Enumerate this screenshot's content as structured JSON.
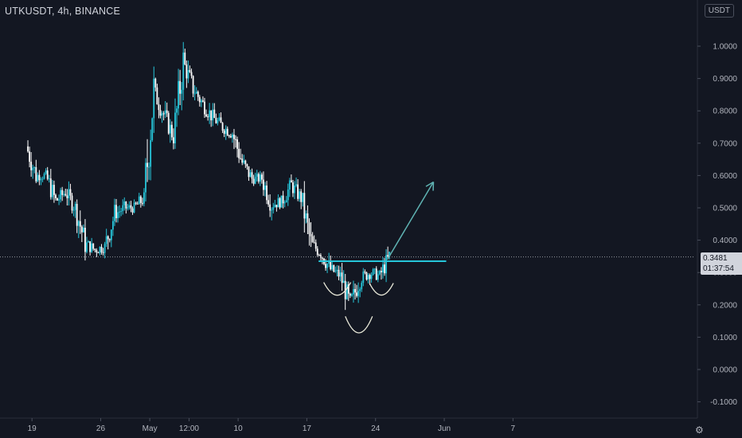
{
  "header": {
    "symbol_title": "UTKUSDT, 4h, BINANCE",
    "currency_button": "USDT"
  },
  "price_tag": {
    "price": "0.3481",
    "countdown": "01:37:54",
    "color": "#d1d4dc"
  },
  "icons": {
    "settings": "gear-icon"
  },
  "colors": {
    "background": "#131722",
    "up_candle": "#26c6da",
    "down_candle": "#ffffff",
    "annotation": "#5fb3b3",
    "arc": "#e8e8d8",
    "axis_text": "#b2b5be",
    "price_line": "#9598a1"
  },
  "chart_data": {
    "type": "line",
    "title": "UTKUSDT, 4h, BINANCE",
    "xlabel": "",
    "ylabel": "",
    "ylim": [
      -0.14,
      1.07
    ],
    "y_ticks": [
      "1.0000",
      "0.9000",
      "0.8000",
      "0.7000",
      "0.6000",
      "0.5000",
      "0.4000",
      "0.3000",
      "0.2000",
      "0.1000",
      "0.0000",
      "-0.1000"
    ],
    "y_tick_values": [
      1.0,
      0.9,
      0.8,
      0.7,
      0.6,
      0.5,
      0.4,
      0.3,
      0.2,
      0.1,
      0.0,
      -0.1
    ],
    "x_ticks": [
      "19",
      "26",
      "May",
      "12:00",
      "10",
      "17",
      "24",
      "Jun",
      "7"
    ],
    "x_tick_values": [
      0.5,
      7.5,
      12.5,
      16.5,
      21.5,
      28.5,
      35.5,
      42.5,
      49.5
    ],
    "x_range": [
      -0.7,
      51.5
    ],
    "current_price": 0.3481,
    "grid": false,
    "legend": "none",
    "series": [
      {
        "values_by_day": [
          [
            0,
            0.69
          ],
          [
            1,
            0.6
          ],
          [
            2,
            0.6
          ],
          [
            3,
            0.52
          ],
          [
            4,
            0.55
          ],
          [
            5,
            0.5
          ],
          [
            6,
            0.39
          ],
          [
            7,
            0.37
          ],
          [
            8,
            0.38
          ],
          [
            9,
            0.48
          ],
          [
            10,
            0.5
          ],
          [
            11,
            0.5
          ],
          [
            12,
            0.53
          ],
          [
            13,
            0.86
          ],
          [
            14,
            0.79
          ],
          [
            15,
            0.72
          ],
          [
            16,
            0.95
          ],
          [
            17,
            0.87
          ],
          [
            18,
            0.82
          ],
          [
            19,
            0.78
          ],
          [
            20,
            0.75
          ],
          [
            21,
            0.73
          ],
          [
            22,
            0.64
          ],
          [
            23,
            0.59
          ],
          [
            24,
            0.59
          ],
          [
            25,
            0.51
          ],
          [
            26,
            0.52
          ],
          [
            27,
            0.57
          ],
          [
            28,
            0.53
          ],
          [
            29,
            0.39
          ],
          [
            30,
            0.36
          ],
          [
            31,
            0.31
          ],
          [
            32,
            0.29
          ],
          [
            33,
            0.2
          ],
          [
            34,
            0.28
          ],
          [
            35,
            0.3
          ],
          [
            36,
            0.29
          ],
          [
            37,
            0.35
          ]
        ]
      }
    ],
    "annotations": {
      "neckline_value": 0.335,
      "neckline_x_range": [
        29.7,
        42.7
      ],
      "breakout_arrow": {
        "from": [
          36.7,
          0.34
        ],
        "to": [
          41.4,
          0.58
        ]
      }
    }
  }
}
